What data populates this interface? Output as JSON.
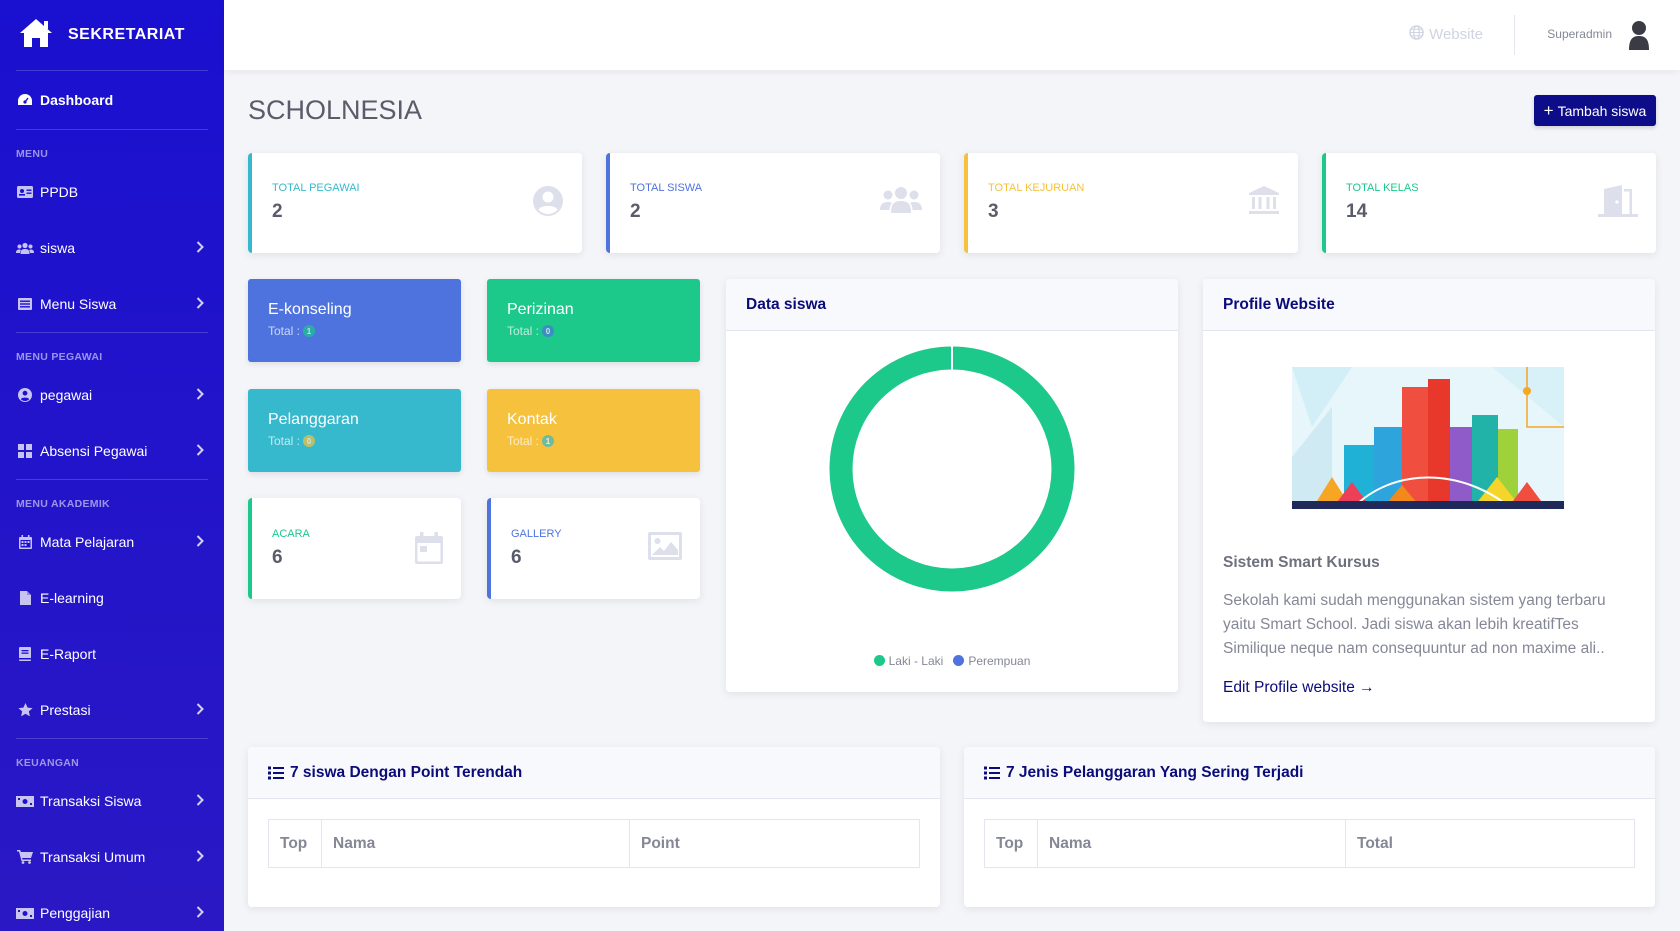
{
  "brand": {
    "name": "SEKRETARIAT",
    "icon": "home-icon"
  },
  "sidebar": {
    "dashboard": "Dashboard",
    "sections": [
      {
        "heading": "MENU",
        "items": [
          {
            "label": "PPDB",
            "icon": "id-card-icon",
            "has_submenu": false
          },
          {
            "label": "siswa",
            "icon": "users-icon",
            "has_submenu": true
          },
          {
            "label": "Menu Siswa",
            "icon": "list-icon",
            "has_submenu": true
          }
        ]
      },
      {
        "heading": "MENU PEGAWAI",
        "items": [
          {
            "label": "pegawai",
            "icon": "user-circle-icon",
            "has_submenu": true
          },
          {
            "label": "Absensi Pegawai",
            "icon": "grid-icon",
            "has_submenu": true
          }
        ]
      },
      {
        "heading": "MENU AKADEMIK",
        "items": [
          {
            "label": "Mata Pelajaran",
            "icon": "calendar-icon",
            "has_submenu": true
          },
          {
            "label": "E-learning",
            "icon": "file-icon",
            "has_submenu": false
          },
          {
            "label": "E-Raport",
            "icon": "book-icon",
            "has_submenu": false
          },
          {
            "label": "Prestasi",
            "icon": "star-icon",
            "has_submenu": true
          }
        ]
      },
      {
        "heading": "KEUANGAN",
        "items": [
          {
            "label": "Transaksi Siswa",
            "icon": "money-icon",
            "has_submenu": true
          },
          {
            "label": "Transaksi Umum",
            "icon": "cart-icon",
            "has_submenu": true
          },
          {
            "label": "Penggajian",
            "icon": "money-icon",
            "has_submenu": true
          }
        ]
      }
    ]
  },
  "topbar": {
    "website": "Website",
    "user": "Superadmin"
  },
  "page": {
    "title": "SCHOLNESIA",
    "add_button": "Tambah siswa"
  },
  "stats": [
    {
      "label": "TOTAL PEGAWAI",
      "value": "2",
      "color": "#36b9cc",
      "icon": "user-circle-icon"
    },
    {
      "label": "TOTAL SISWA",
      "value": "2",
      "color": "#4e73df",
      "icon": "users-icon"
    },
    {
      "label": "TOTAL KEJURUAN",
      "value": "3",
      "color": "#f6c23e",
      "icon": "bank-icon"
    },
    {
      "label": "TOTAL KELAS",
      "value": "14",
      "color": "#1cc88a",
      "icon": "door-icon"
    }
  ],
  "tiles": [
    {
      "title": "E-konseling",
      "sub": "Total :",
      "count": "1",
      "bg": "#4e73df",
      "badge": "#1cc88a"
    },
    {
      "title": "Perizinan",
      "sub": "Total :",
      "count": "0",
      "bg": "#1cc88a",
      "badge": "#4e73df"
    },
    {
      "title": "Pelanggaran",
      "sub": "Total :",
      "count": "0",
      "bg": "#36b9cc",
      "badge": "#f6c23e"
    },
    {
      "title": "Kontak",
      "sub": "Total :",
      "count": "1",
      "bg": "#f6c23e",
      "badge": "#36b9cc"
    }
  ],
  "minis": [
    {
      "label": "ACARA",
      "value": "6",
      "color": "#1cc88a",
      "icon": "calendar-icon"
    },
    {
      "label": "GALLERY",
      "value": "6",
      "color": "#4e73df",
      "icon": "image-icon"
    }
  ],
  "chart_data": {
    "type": "pie",
    "title": "Data siswa",
    "categories": [
      "Laki - Laki",
      "Perempuan"
    ],
    "values": [
      2,
      0
    ],
    "colors": [
      "#1cc88a",
      "#4e73df"
    ],
    "legend": "bottom"
  },
  "profile": {
    "title": "Profile Website",
    "heading": "Sistem Smart Kursus",
    "description": "Sekolah kami sudah menggunakan sistem yang terbaru yaitu Smart School. Jadi siswa akan lebih kreatifTes Similique neque nam consequuntur ad non maxime ali..",
    "link": "Edit Profile website →"
  },
  "tables": [
    {
      "title": "7 siswa Dengan Point Terendah",
      "columns": [
        "Top",
        "Nama",
        "Point"
      ]
    },
    {
      "title": "7 Jenis Pelanggaran Yang Sering Terjadi",
      "columns": [
        "Top",
        "Nama",
        "Total"
      ]
    }
  ]
}
